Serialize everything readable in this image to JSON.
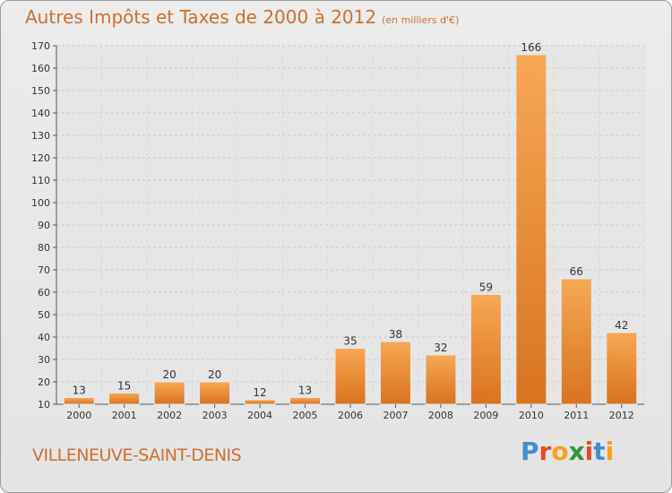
{
  "chart_data": {
    "type": "bar",
    "title": "Autres Impôts et Taxes de 2000 à 2012",
    "subtitle": "(en milliers d'€)",
    "categories": [
      "2000",
      "2001",
      "2002",
      "2003",
      "2004",
      "2005",
      "2006",
      "2007",
      "2008",
      "2009",
      "2010",
      "2011",
      "2012"
    ],
    "values": [
      13,
      15,
      20,
      20,
      12,
      13,
      35,
      38,
      32,
      59,
      166,
      66,
      42
    ],
    "ylim": [
      10,
      170
    ],
    "yticks": [
      10,
      20,
      30,
      40,
      50,
      60,
      70,
      80,
      90,
      100,
      110,
      120,
      130,
      140,
      150,
      160,
      170
    ],
    "grid": true,
    "bar_color": "#f0913a"
  },
  "commune": "VILLENEUVE-SAINT-DENIS",
  "logo": {
    "letters": [
      "P",
      "r",
      "o",
      "x",
      "i",
      "t",
      "i"
    ],
    "colors": [
      "#3f8fd4",
      "#e84a1f",
      "#f4a11c",
      "#2a9a3a",
      "#e84a1f",
      "#3f8fd4",
      "#f4a11c"
    ]
  }
}
